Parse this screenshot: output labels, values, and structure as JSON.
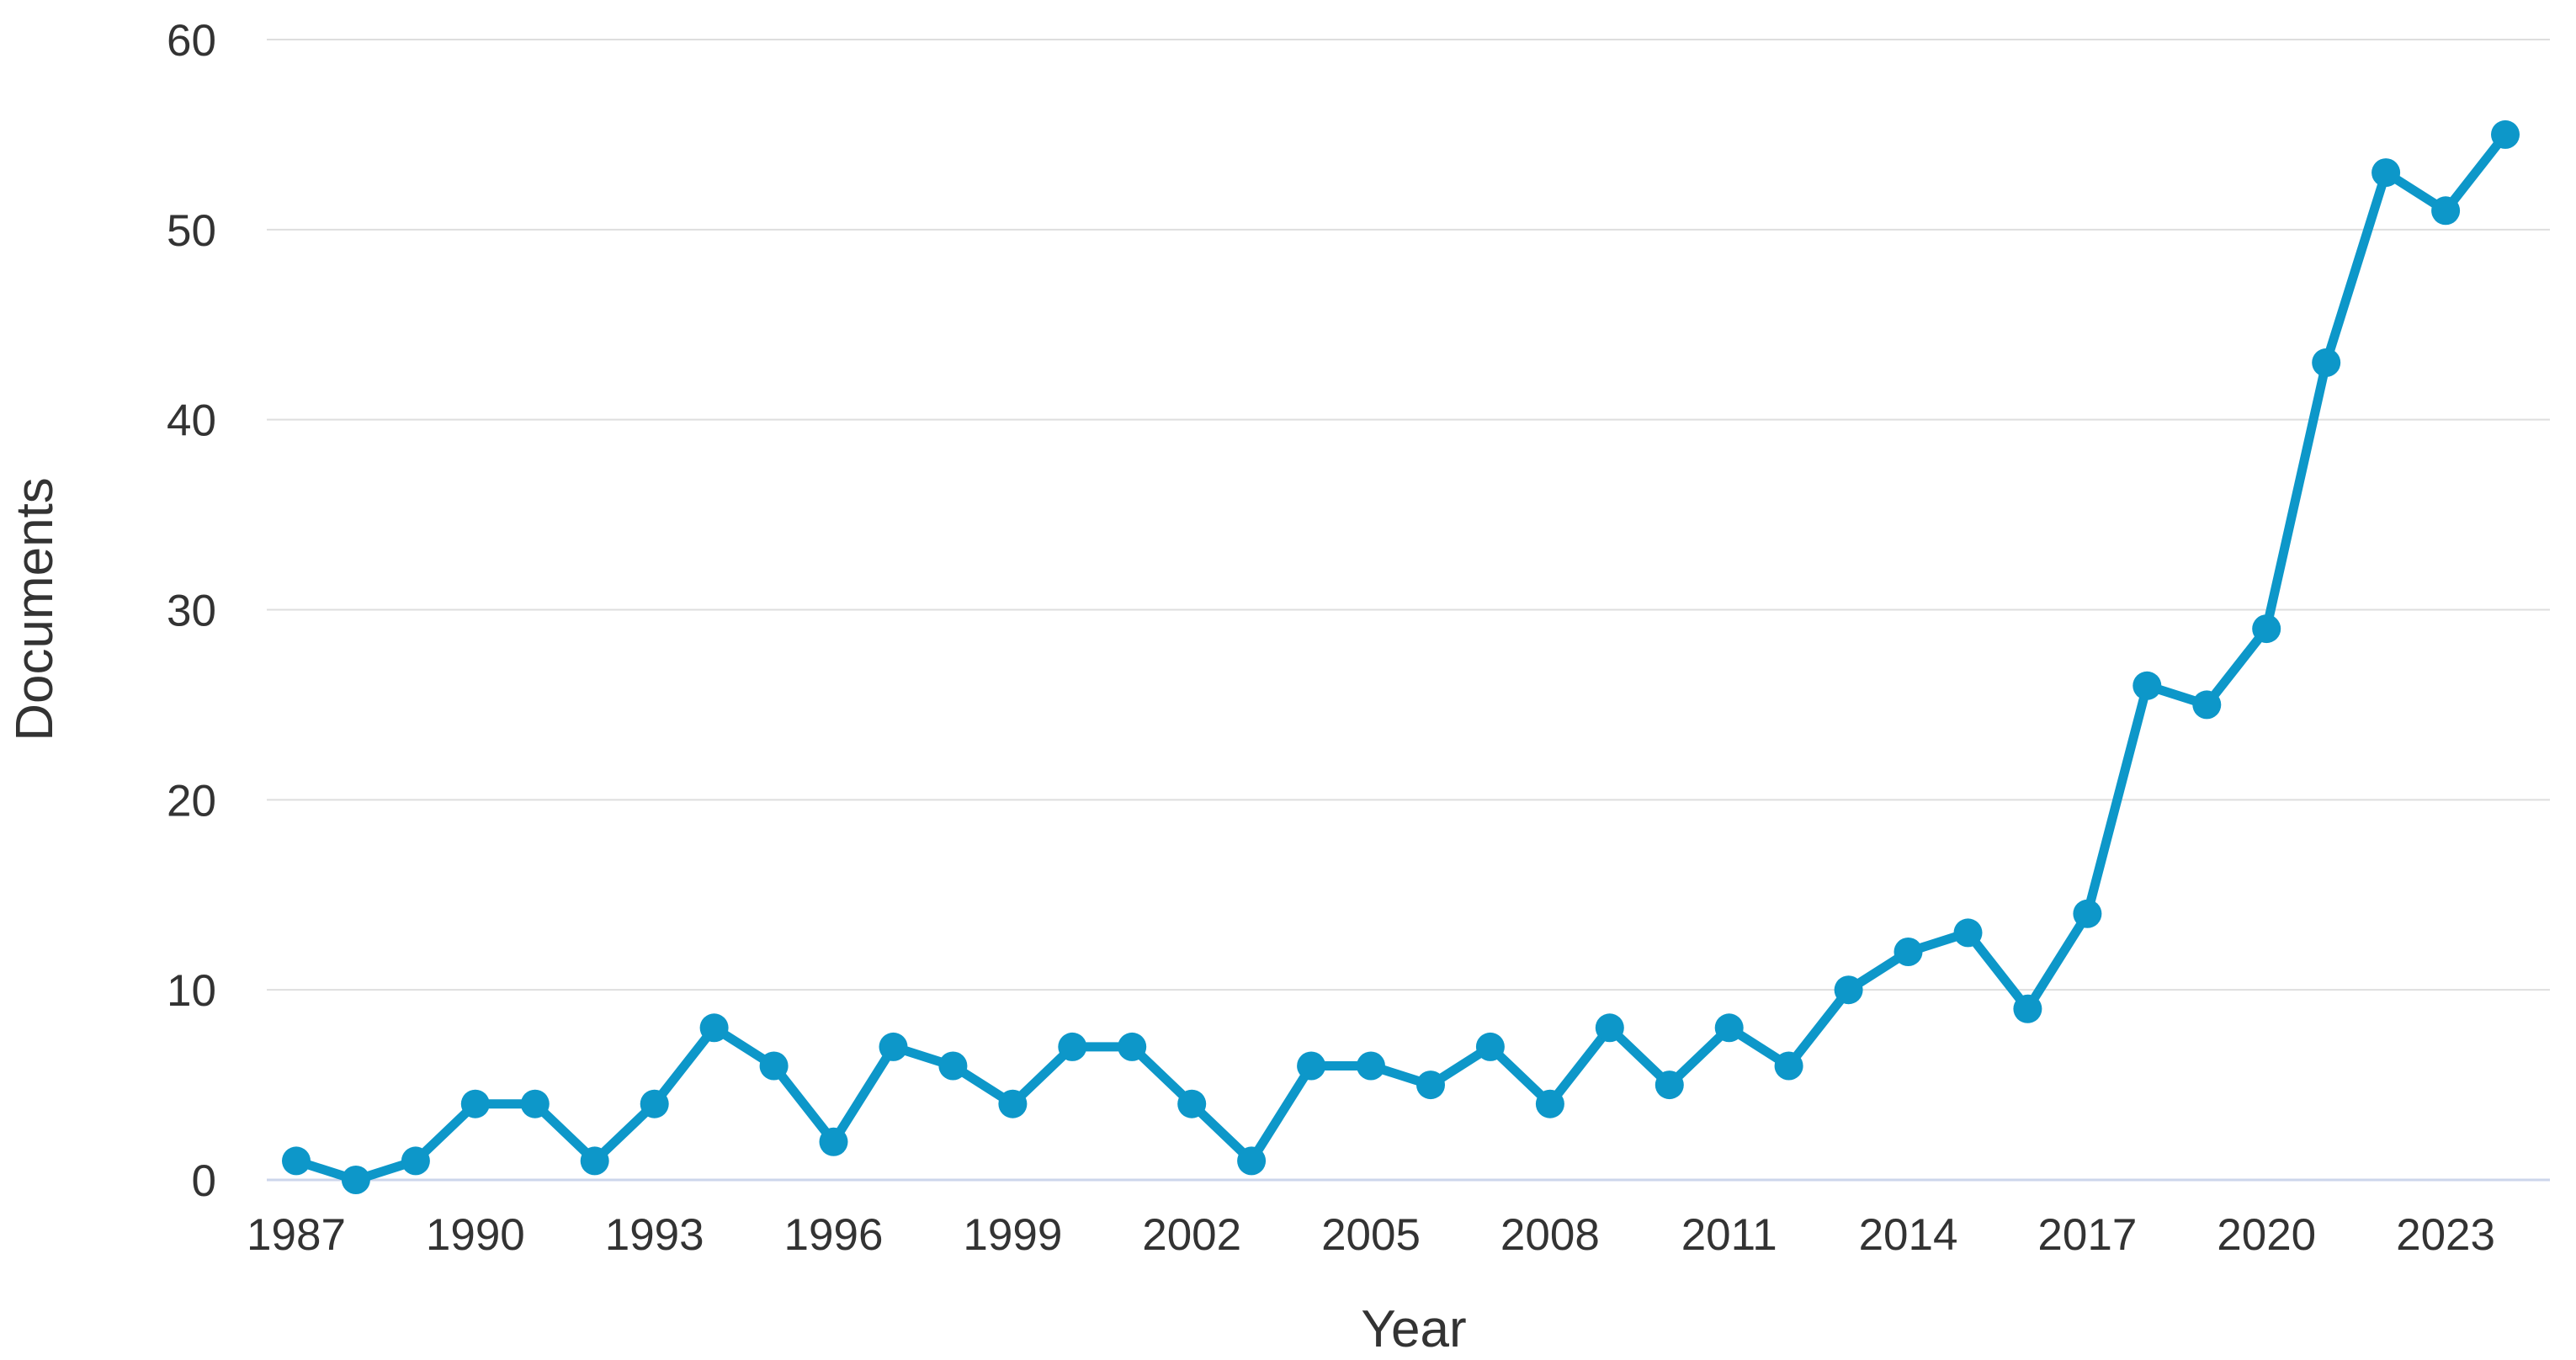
{
  "chart_data": {
    "type": "line",
    "title": "",
    "xlabel": "Year",
    "ylabel": "Documents",
    "x": [
      1987,
      1988,
      1989,
      1990,
      1991,
      1992,
      1993,
      1994,
      1995,
      1996,
      1997,
      1998,
      1999,
      2000,
      2001,
      2002,
      2003,
      2004,
      2005,
      2006,
      2007,
      2008,
      2009,
      2010,
      2011,
      2012,
      2013,
      2014,
      2015,
      2016,
      2017,
      2018,
      2019,
      2020,
      2021,
      2022,
      2023,
      2024
    ],
    "series": [
      {
        "name": "Documents",
        "values": [
          1,
          0,
          1,
          4,
          4,
          1,
          4,
          8,
          6,
          2,
          7,
          6,
          4,
          7,
          7,
          4,
          1,
          6,
          6,
          5,
          7,
          4,
          8,
          5,
          8,
          6,
          10,
          12,
          13,
          9,
          14,
          26,
          25,
          29,
          43,
          53,
          51,
          55
        ]
      }
    ],
    "ylim": [
      0,
      60
    ],
    "yticks": [
      0,
      10,
      20,
      30,
      40,
      50,
      60
    ],
    "xticks": [
      1987,
      1990,
      1993,
      1996,
      1999,
      2002,
      2005,
      2008,
      2011,
      2014,
      2017,
      2020,
      2023
    ],
    "grid": true,
    "legend": false,
    "marker": "circle",
    "colors": {
      "series": "#0d97c9",
      "grid": "#dedede",
      "axis_line": "#ccd6eb",
      "text": "#333333",
      "background": "#ffffff"
    }
  }
}
